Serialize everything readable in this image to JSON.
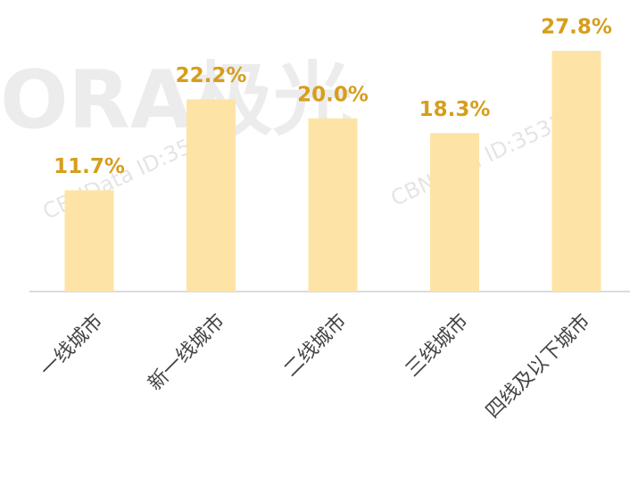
{
  "chart_data": {
    "type": "bar",
    "categories": [
      "一线城市",
      "新一线城市",
      "二线城市",
      "三线城市",
      "四线及以下城市"
    ],
    "values": [
      11.7,
      22.2,
      20.0,
      18.3,
      27.8
    ],
    "value_labels": [
      "11.7%",
      "22.2%",
      "20.0%",
      "18.3%",
      "27.8%"
    ],
    "color": "#fde4a6",
    "label_color": "#d69e1c",
    "watermark": [
      "ORA极光",
      "CBNData ID:353137"
    ]
  }
}
